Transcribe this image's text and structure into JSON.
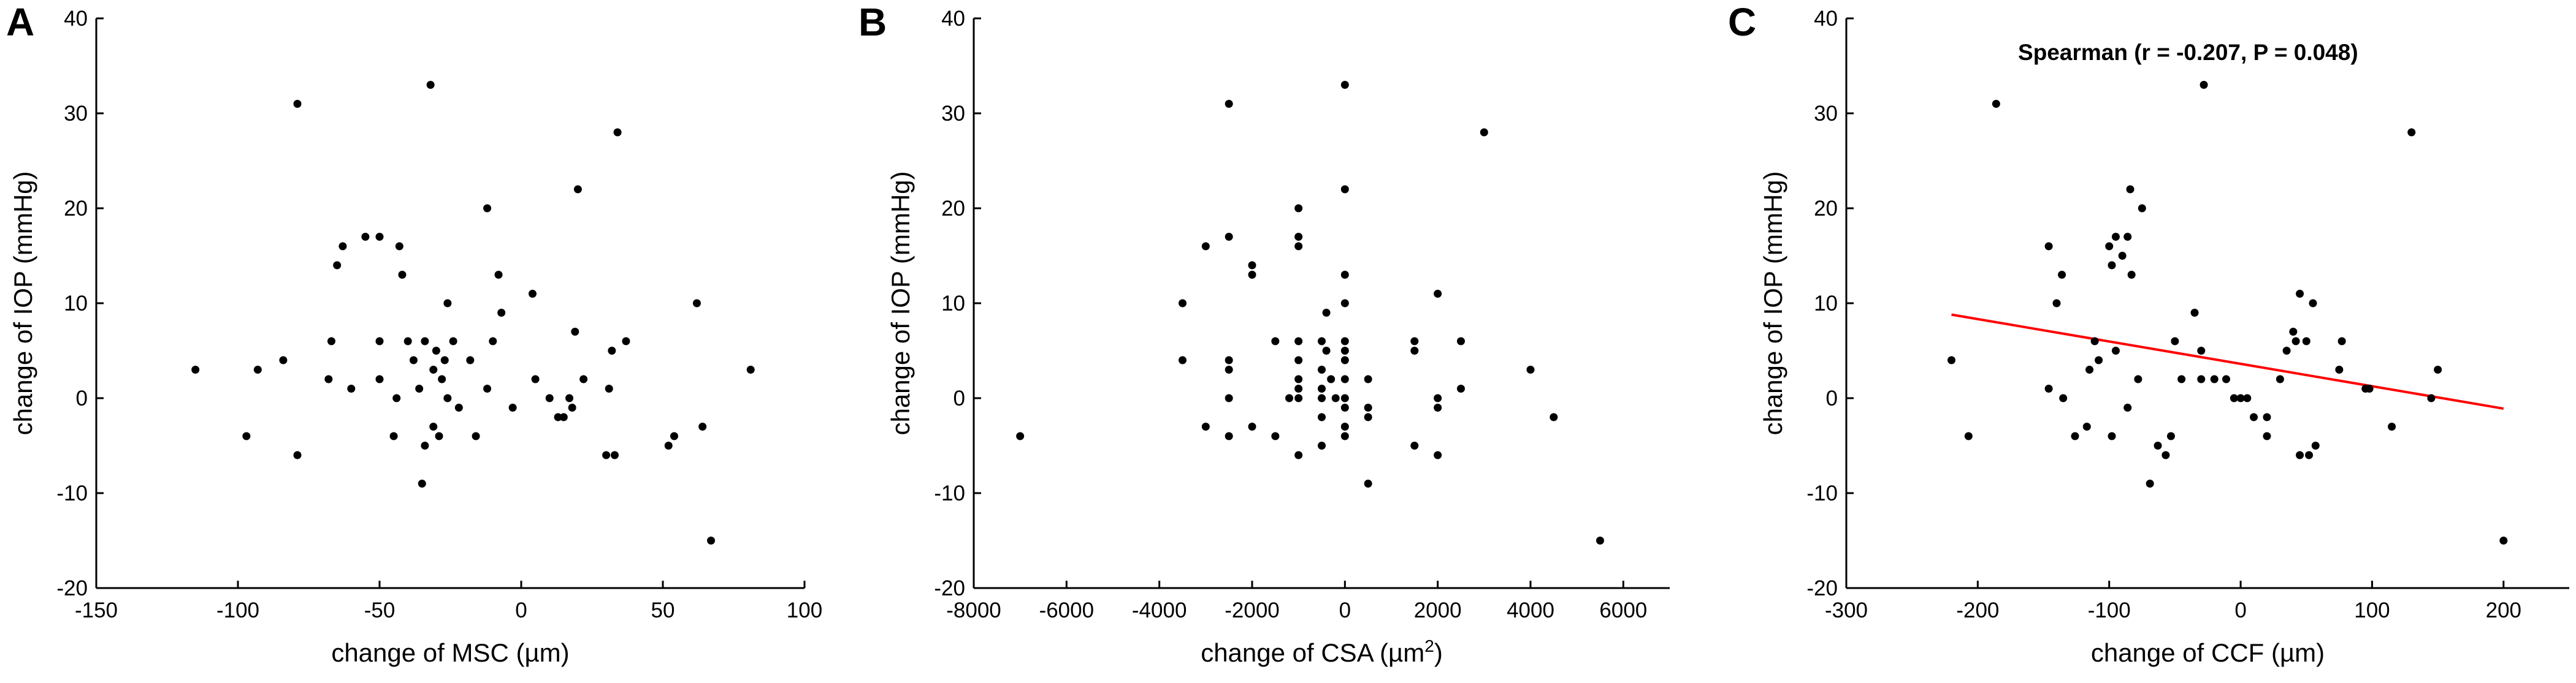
{
  "chart_data": [
    {
      "panel": "A",
      "type": "scatter",
      "xlabel": "change of MSC (µm)",
      "ylabel": "change of IOP (mmHg)",
      "xlim": [
        -150,
        100
      ],
      "ylim": [
        -20,
        40
      ],
      "xticks": [
        -150,
        -100,
        -50,
        0,
        50,
        100
      ],
      "yticks": [
        -20,
        -10,
        0,
        10,
        20,
        30,
        40
      ],
      "points": [
        [
          -115,
          3
        ],
        [
          -97,
          -4
        ],
        [
          -93,
          3
        ],
        [
          -84,
          4
        ],
        [
          -79,
          31
        ],
        [
          -79,
          -6
        ],
        [
          -68,
          2
        ],
        [
          -67,
          6
        ],
        [
          -65,
          14
        ],
        [
          -63,
          16
        ],
        [
          -60,
          1
        ],
        [
          -55,
          17
        ],
        [
          -50,
          17
        ],
        [
          -50,
          6
        ],
        [
          -50,
          2
        ],
        [
          -45,
          -4
        ],
        [
          -44,
          0
        ],
        [
          -43,
          16
        ],
        [
          -42,
          13
        ],
        [
          -40,
          6
        ],
        [
          -38,
          4
        ],
        [
          -36,
          1
        ],
        [
          -35,
          -9
        ],
        [
          -34,
          6
        ],
        [
          -34,
          -5
        ],
        [
          -32,
          33
        ],
        [
          -31,
          3
        ],
        [
          -31,
          -3
        ],
        [
          -30,
          5
        ],
        [
          -29,
          -4
        ],
        [
          -28,
          2
        ],
        [
          -27,
          4
        ],
        [
          -26,
          10
        ],
        [
          -26,
          0
        ],
        [
          -24,
          6
        ],
        [
          -22,
          -1
        ],
        [
          -18,
          4
        ],
        [
          -16,
          -4
        ],
        [
          -12,
          20
        ],
        [
          -12,
          1
        ],
        [
          -10,
          6
        ],
        [
          -8,
          13
        ],
        [
          -7,
          9
        ],
        [
          -3,
          -1
        ],
        [
          4,
          11
        ],
        [
          5,
          2
        ],
        [
          10,
          0
        ],
        [
          13,
          -2
        ],
        [
          15,
          -2
        ],
        [
          17,
          0
        ],
        [
          18,
          -1
        ],
        [
          19,
          7
        ],
        [
          20,
          22
        ],
        [
          22,
          2
        ],
        [
          30,
          -6
        ],
        [
          31,
          1
        ],
        [
          32,
          5
        ],
        [
          33,
          -6
        ],
        [
          34,
          28
        ],
        [
          37,
          6
        ],
        [
          52,
          -5
        ],
        [
          54,
          -4
        ],
        [
          62,
          10
        ],
        [
          64,
          -3
        ],
        [
          67,
          -15
        ],
        [
          81,
          3
        ]
      ],
      "regression": null,
      "annotation": ""
    },
    {
      "panel": "B",
      "type": "scatter",
      "xlabel": "change of CSA (µm",
      "xlabel_sup": "2",
      "xlabel_suffix": ")",
      "ylabel": "change of IOP (mmHg)",
      "xlim": [
        -8000,
        7000
      ],
      "ylim": [
        -20,
        40
      ],
      "xticks": [
        -8000,
        -6000,
        -4000,
        -2000,
        0,
        2000,
        4000,
        6000
      ],
      "yticks": [
        -20,
        -10,
        0,
        10,
        20,
        30,
        40
      ],
      "points": [
        [
          -7000,
          -4
        ],
        [
          -3500,
          10
        ],
        [
          -3500,
          4
        ],
        [
          -3000,
          16
        ],
        [
          -3000,
          -3
        ],
        [
          -2500,
          31
        ],
        [
          -2500,
          17
        ],
        [
          -2500,
          4
        ],
        [
          -2500,
          3
        ],
        [
          -2500,
          0
        ],
        [
          -2500,
          -4
        ],
        [
          -2000,
          14
        ],
        [
          -2000,
          13
        ],
        [
          -2000,
          -3
        ],
        [
          -1500,
          6
        ],
        [
          -1500,
          -4
        ],
        [
          -1200,
          0
        ],
        [
          -1000,
          20
        ],
        [
          -1000,
          17
        ],
        [
          -1000,
          16
        ],
        [
          -1000,
          6
        ],
        [
          -1000,
          4
        ],
        [
          -1000,
          2
        ],
        [
          -1000,
          1
        ],
        [
          -1000,
          0
        ],
        [
          -1000,
          -6
        ],
        [
          -500,
          6
        ],
        [
          -500,
          3
        ],
        [
          -500,
          1
        ],
        [
          -500,
          0
        ],
        [
          -500,
          -2
        ],
        [
          -500,
          -5
        ],
        [
          -400,
          9
        ],
        [
          -400,
          5
        ],
        [
          -300,
          2
        ],
        [
          -200,
          0
        ],
        [
          0,
          33
        ],
        [
          0,
          22
        ],
        [
          0,
          13
        ],
        [
          0,
          10
        ],
        [
          0,
          6
        ],
        [
          0,
          5
        ],
        [
          0,
          4
        ],
        [
          0,
          2
        ],
        [
          0,
          0
        ],
        [
          0,
          -1
        ],
        [
          0,
          -3
        ],
        [
          0,
          -4
        ],
        [
          500,
          2
        ],
        [
          500,
          -1
        ],
        [
          500,
          -2
        ],
        [
          500,
          -9
        ],
        [
          1500,
          6
        ],
        [
          1500,
          5
        ],
        [
          1500,
          -5
        ],
        [
          2000,
          11
        ],
        [
          2000,
          0
        ],
        [
          2000,
          -1
        ],
        [
          2000,
          -6
        ],
        [
          2500,
          6
        ],
        [
          2500,
          1
        ],
        [
          3000,
          28
        ],
        [
          4000,
          3
        ],
        [
          4500,
          -2
        ],
        [
          5500,
          -15
        ]
      ],
      "regression": null,
      "annotation": ""
    },
    {
      "panel": "C",
      "type": "scatter",
      "xlabel": "change of CCF (µm)",
      "ylabel": "change of IOP (mmHg)",
      "xlim": [
        -300,
        250
      ],
      "ylim": [
        -20,
        40
      ],
      "xticks": [
        -300,
        -200,
        -100,
        0,
        100,
        200
      ],
      "yticks": [
        -20,
        -10,
        0,
        10,
        20,
        30,
        40
      ],
      "points": [
        [
          -220,
          4
        ],
        [
          -207,
          -4
        ],
        [
          -186,
          31
        ],
        [
          -146,
          16
        ],
        [
          -146,
          1
        ],
        [
          -140,
          10
        ],
        [
          -136,
          13
        ],
        [
          -135,
          0
        ],
        [
          -126,
          -4
        ],
        [
          -117,
          -3
        ],
        [
          -115,
          3
        ],
        [
          -111,
          6
        ],
        [
          -108,
          4
        ],
        [
          -100,
          16
        ],
        [
          -98,
          -4
        ],
        [
          -98,
          14
        ],
        [
          -95,
          17
        ],
        [
          -95,
          5
        ],
        [
          -90,
          15
        ],
        [
          -86,
          17
        ],
        [
          -86,
          -1
        ],
        [
          -84,
          22
        ],
        [
          -83,
          13
        ],
        [
          -78,
          2
        ],
        [
          -75,
          20
        ],
        [
          -69,
          -9
        ],
        [
          -63,
          -5
        ],
        [
          -57,
          -6
        ],
        [
          -53,
          -4
        ],
        [
          -50,
          6
        ],
        [
          -45,
          2
        ],
        [
          -35,
          9
        ],
        [
          -30,
          5
        ],
        [
          -30,
          2
        ],
        [
          -28,
          33
        ],
        [
          -20,
          2
        ],
        [
          -11,
          2
        ],
        [
          -5,
          0
        ],
        [
          0,
          0
        ],
        [
          5,
          0
        ],
        [
          10,
          -2
        ],
        [
          20,
          -2
        ],
        [
          20,
          -4
        ],
        [
          30,
          2
        ],
        [
          35,
          5
        ],
        [
          40,
          7
        ],
        [
          42,
          6
        ],
        [
          45,
          11
        ],
        [
          45,
          -6
        ],
        [
          50,
          6
        ],
        [
          52,
          -6
        ],
        [
          55,
          10
        ],
        [
          57,
          -5
        ],
        [
          75,
          3
        ],
        [
          77,
          6
        ],
        [
          95,
          1
        ],
        [
          98,
          1
        ],
        [
          115,
          -3
        ],
        [
          130,
          28
        ],
        [
          145,
          0
        ],
        [
          150,
          3
        ],
        [
          200,
          -15
        ]
      ],
      "regression": {
        "x": [
          -220,
          200
        ],
        "y": [
          8.8,
          -1.1
        ],
        "color": "#ff0000"
      },
      "annotation": "Spearman (r = -0.207, P = 0.048)"
    }
  ]
}
